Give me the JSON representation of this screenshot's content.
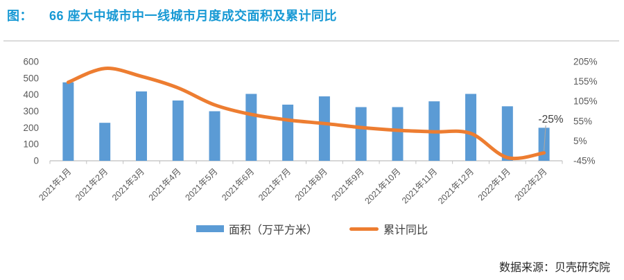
{
  "title": {
    "prefix": "图：",
    "text": "66 座大中城市中一线城市月度成交面积及累计同比"
  },
  "footer": {
    "source": "数据来源：贝壳研究院"
  },
  "colors": {
    "title": "#1799D4",
    "bar": "#5B9BD5",
    "line": "#ED7D31",
    "axis_text": "#595959",
    "axis_line": "#BFBFBF",
    "annotation_text": "#404040",
    "leader_line": "#A6A6A6",
    "divider": "#DBDBDB"
  },
  "chart_data": {
    "type": "bar",
    "subtype": "bar+line combo, dual axis",
    "title": "66 座大中城市中一线城市月度成交面积及累计同比",
    "categories": [
      "2021年1月",
      "2021年2月",
      "2021年3月",
      "2021年4月",
      "2021年5月",
      "2021年6月",
      "2021年7月",
      "2021年8月",
      "2021年9月",
      "2021年10月",
      "2021年11月",
      "2021年12月",
      "2022年1月",
      "2022年2月"
    ],
    "series": [
      {
        "name": "面积（万平方米）",
        "type": "bar",
        "axis": "left",
        "color": "#5B9BD5",
        "values": [
          475,
          230,
          420,
          365,
          300,
          405,
          340,
          390,
          325,
          325,
          360,
          405,
          330,
          200
        ]
      },
      {
        "name": "累计同比",
        "type": "line",
        "axis": "right",
        "color": "#ED7D31",
        "smooth": true,
        "values": [
          153,
          188,
          168,
          139,
          96,
          72,
          58,
          49,
          39,
          32,
          28,
          24,
          -37,
          -25
        ]
      }
    ],
    "left_axis": {
      "min": 0,
      "max": 600,
      "step": 100,
      "ticks": [
        0,
        100,
        200,
        300,
        400,
        500,
        600
      ],
      "suffix": ""
    },
    "right_axis": {
      "min": -45,
      "max": 205,
      "step": 50,
      "ticks": [
        -45,
        5,
        55,
        105,
        155,
        205
      ],
      "suffix": "%"
    },
    "annotation": {
      "text": "-25%",
      "target_index": 13
    },
    "legend": {
      "position": "bottom",
      "entries": [
        "面积（万平方米）",
        "累计同比"
      ]
    },
    "grid": false
  }
}
